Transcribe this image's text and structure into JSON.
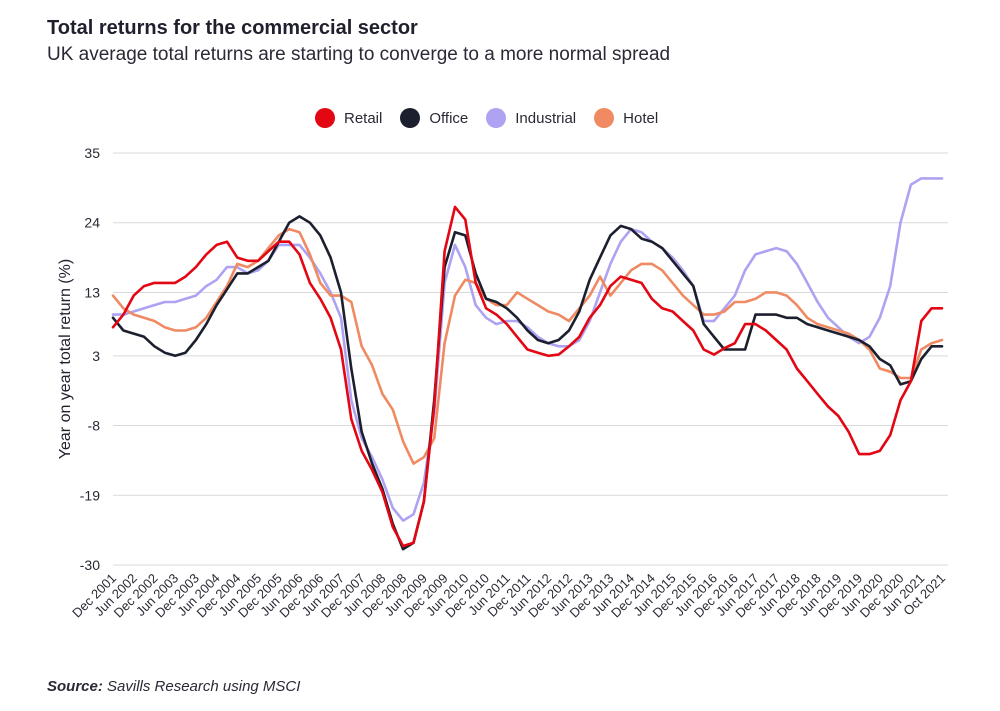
{
  "title": "Total returns for the commercial sector",
  "subtitle": "UK average total returns are starting to converge to a more normal spread",
  "source_label": "Source:",
  "source_text": "Savills Research using MSCI",
  "chart_data": {
    "type": "line",
    "ylabel": "Year on year total return (%)",
    "xlabel": "",
    "ylim": [
      -30,
      35
    ],
    "yticks": [
      35,
      24,
      13,
      3,
      -8,
      -19,
      -30
    ],
    "grid": true,
    "legend_position": "top-center",
    "x": [
      "Dec 2001",
      "Mar 2002",
      "Jun 2002",
      "Sep 2002",
      "Dec 2002",
      "Mar 2003",
      "Jun 2003",
      "Sep 2003",
      "Dec 2003",
      "Mar 2004",
      "Jun 2004",
      "Sep 2004",
      "Dec 2004",
      "Mar 2005",
      "Jun 2005",
      "Sep 2005",
      "Dec 2005",
      "Mar 2006",
      "Jun 2006",
      "Sep 2006",
      "Dec 2006",
      "Mar 2007",
      "Jun 2007",
      "Sep 2007",
      "Dec 2007",
      "Mar 2008",
      "Jun 2008",
      "Sep 2008",
      "Dec 2008",
      "Mar 2009",
      "Jun 2009",
      "Sep 2009",
      "Dec 2009",
      "Mar 2010",
      "Jun 2010",
      "Sep 2010",
      "Dec 2010",
      "Mar 2011",
      "Jun 2011",
      "Sep 2011",
      "Dec 2011",
      "Mar 2012",
      "Jun 2012",
      "Sep 2012",
      "Dec 2012",
      "Mar 2013",
      "Jun 2013",
      "Sep 2013",
      "Dec 2013",
      "Mar 2014",
      "Jun 2014",
      "Sep 2014",
      "Dec 2014",
      "Mar 2015",
      "Jun 2015",
      "Sep 2015",
      "Dec 2015",
      "Mar 2016",
      "Jun 2016",
      "Sep 2016",
      "Dec 2016",
      "Mar 2017",
      "Jun 2017",
      "Sep 2017",
      "Dec 2017",
      "Mar 2018",
      "Jun 2018",
      "Sep 2018",
      "Dec 2018",
      "Mar 2019",
      "Jun 2019",
      "Sep 2019",
      "Dec 2019",
      "Mar 2020",
      "Jun 2020",
      "Sep 2020",
      "Dec 2020",
      "Mar 2021",
      "Jun 2021",
      "Sep 2021",
      "Oct 2021"
    ],
    "xticklabels": [
      "Dec 2001",
      "Jun 2002",
      "Dec 2002",
      "Jun 2003",
      "Dec 2003",
      "Jun 2004",
      "Dec 2004",
      "Jun 2005",
      "Dec 2005",
      "Jun 2006",
      "Dec 2006",
      "Jun 2007",
      "Dec 2007",
      "Jun 2008",
      "Dec 2008",
      "Jun 2009",
      "Dec 2009",
      "Jun 2010",
      "Dec 2010",
      "Jun 2011",
      "Dec 2011",
      "Jun 2012",
      "Dec 2012",
      "Jun 2013",
      "Dec 2013",
      "Jun 2014",
      "Dec 2014",
      "Jun 2015",
      "Dec 2015",
      "Jun 2016",
      "Dec 2016",
      "Jun 2017",
      "Dec 2017",
      "Jun 2018",
      "Dec 2018",
      "Jun 2019",
      "Dec 2019",
      "Jun 2020",
      "Dec 2020",
      "Jun 2021",
      "Oct 2021"
    ],
    "series": [
      {
        "name": "Retail",
        "color": "#e30613",
        "values": [
          7.5,
          9.5,
          12.5,
          14,
          14.5,
          14.5,
          14.5,
          15.5,
          17,
          19,
          20.5,
          21,
          18.5,
          18,
          18,
          19.5,
          21,
          21,
          19,
          14.5,
          12,
          9,
          4,
          -7,
          -12,
          -15,
          -18.5,
          -24,
          -27,
          -26.5,
          -20,
          -5,
          19.5,
          26.5,
          24.5,
          14.5,
          10.5,
          9.5,
          8,
          6,
          4,
          3.5,
          3,
          3.2,
          4.5,
          6,
          9,
          11,
          14,
          15.5,
          15,
          14.5,
          12,
          10.5,
          10,
          8.5,
          7,
          4,
          3.2,
          4.2,
          5,
          8,
          8,
          7,
          5.5,
          4,
          1,
          -1,
          -3,
          -5,
          -6.5,
          -9,
          -12.5,
          -12.5,
          -12,
          -9.5,
          -4,
          -1,
          8.5,
          10.5,
          10.5
        ]
      },
      {
        "name": "Office",
        "color": "#1c1f2e",
        "values": [
          9,
          7,
          6.5,
          6,
          4.5,
          3.5,
          3,
          3.5,
          5.5,
          8,
          11,
          13.5,
          16,
          16,
          17,
          18,
          21,
          24,
          25,
          24,
          22,
          18.5,
          13,
          1,
          -9,
          -14,
          -18,
          -23.5,
          -27.5,
          -26.5,
          -20,
          -4,
          17,
          22.5,
          22,
          16,
          12,
          11.5,
          10.5,
          9,
          7,
          5.5,
          5,
          5.5,
          7,
          10,
          15,
          18.5,
          22,
          23.5,
          23,
          21.5,
          21,
          20,
          18,
          16,
          14,
          8,
          6,
          4,
          4,
          4,
          9.5,
          9.5,
          9.5,
          9,
          9,
          8,
          7.5,
          7,
          6.5,
          6,
          5.5,
          4.5,
          2.5,
          1.5,
          -1.5,
          -1,
          2.5,
          4.5,
          4.5
        ]
      },
      {
        "name": "Industrial",
        "color": "#aea2f2",
        "values": [
          9.5,
          9.5,
          10,
          10.5,
          11,
          11.5,
          11.5,
          12,
          12.5,
          14,
          15,
          17,
          17,
          16,
          16.5,
          18,
          20.5,
          20.5,
          20.5,
          18.5,
          16,
          13,
          9,
          -4,
          -10,
          -13,
          -16.5,
          -21,
          -23,
          -22,
          -17,
          -6,
          14.5,
          20.5,
          17,
          11,
          9,
          8,
          8.5,
          8.5,
          7.5,
          6,
          5,
          4.5,
          4.5,
          5.5,
          8.5,
          13,
          17.5,
          21,
          23,
          22.5,
          21,
          20,
          18.5,
          16.5,
          14,
          8.5,
          8.5,
          10.5,
          12.5,
          16.5,
          19,
          19.5,
          20,
          19.5,
          17.5,
          14.5,
          11.5,
          9,
          7.5,
          6,
          5,
          6,
          9,
          14,
          24,
          30,
          31,
          31,
          31
        ]
      },
      {
        "name": "Hotel",
        "color": "#ef8a62",
        "values": [
          12.5,
          10.5,
          9.5,
          9,
          8.5,
          7.5,
          7,
          7,
          7.5,
          9,
          11.5,
          14,
          17.5,
          17,
          18,
          20,
          22,
          23,
          22.5,
          19,
          14.5,
          12.5,
          12.5,
          11.5,
          4.5,
          1.5,
          -3,
          -5.5,
          -10.5,
          -14,
          -13,
          -10,
          5,
          12.5,
          15,
          14.5,
          12,
          11,
          11,
          13,
          12,
          11,
          10,
          9.5,
          8.5,
          10.5,
          12.5,
          15.5,
          12.5,
          14.5,
          16.5,
          17.5,
          17.5,
          16.5,
          14.5,
          12.5,
          11,
          9.5,
          9.5,
          10,
          11.5,
          11.5,
          12,
          13,
          13,
          12.5,
          11,
          9,
          8,
          7.5,
          7,
          6.5,
          5.5,
          4,
          1,
          0.5,
          -0.5,
          -0.5,
          4,
          5,
          5.5
        ]
      }
    ]
  }
}
